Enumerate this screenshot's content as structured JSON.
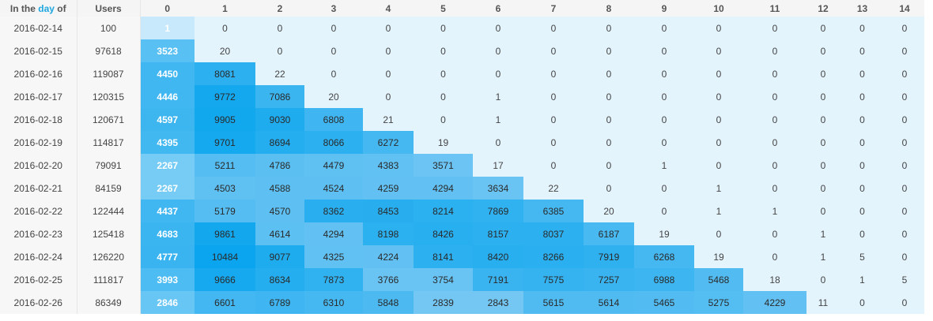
{
  "header": {
    "corner_prefix": "In the",
    "corner_accent": "day",
    "corner_suffix": "of",
    "users_label": "Users",
    "day_labels": [
      "0",
      "1",
      "2",
      "3",
      "4",
      "5",
      "6",
      "7",
      "8",
      "9",
      "10",
      "11",
      "12",
      "13",
      "14"
    ]
  },
  "colors": {
    "accent": "#1ca7e0",
    "cell_light": "#e4f4fd",
    "cell_dark": "#0aa5ee",
    "header_bg": "#f5f5f5"
  },
  "rows": [
    {
      "date": "2016-02-14",
      "users": "100",
      "values": [
        1,
        0,
        0,
        0,
        0,
        0,
        0,
        0,
        0,
        0,
        0,
        0,
        0,
        0,
        0
      ]
    },
    {
      "date": "2016-02-15",
      "users": "97618",
      "values": [
        3523,
        20,
        0,
        0,
        0,
        0,
        0,
        0,
        0,
        0,
        0,
        0,
        0,
        0,
        0
      ]
    },
    {
      "date": "2016-02-16",
      "users": "119087",
      "values": [
        4450,
        8081,
        22,
        0,
        0,
        0,
        0,
        0,
        0,
        0,
        0,
        0,
        0,
        0,
        0
      ]
    },
    {
      "date": "2016-02-17",
      "users": "120315",
      "values": [
        4446,
        9772,
        7086,
        20,
        0,
        0,
        1,
        0,
        0,
        0,
        0,
        0,
        0,
        0,
        0
      ]
    },
    {
      "date": "2016-02-18",
      "users": "120671",
      "values": [
        4597,
        9905,
        9030,
        6808,
        21,
        0,
        1,
        0,
        0,
        0,
        0,
        0,
        0,
        0,
        0
      ]
    },
    {
      "date": "2016-02-19",
      "users": "114817",
      "values": [
        4395,
        9701,
        8694,
        8066,
        6272,
        19,
        0,
        0,
        0,
        0,
        0,
        0,
        0,
        0,
        0
      ]
    },
    {
      "date": "2016-02-20",
      "users": "79091",
      "values": [
        2267,
        5211,
        4786,
        4479,
        4383,
        3571,
        17,
        0,
        0,
        1,
        0,
        0,
        0,
        0,
        0
      ]
    },
    {
      "date": "2016-02-21",
      "users": "84159",
      "values": [
        2267,
        4503,
        4588,
        4524,
        4259,
        4294,
        3634,
        22,
        0,
        0,
        1,
        0,
        0,
        0,
        0
      ]
    },
    {
      "date": "2016-02-22",
      "users": "122444",
      "values": [
        4437,
        5179,
        4570,
        8362,
        8453,
        8214,
        7869,
        6385,
        20,
        0,
        1,
        1,
        0,
        0,
        0
      ]
    },
    {
      "date": "2016-02-23",
      "users": "125418",
      "values": [
        4683,
        9861,
        4614,
        4294,
        8198,
        8426,
        8157,
        8037,
        6187,
        19,
        0,
        0,
        1,
        0,
        0
      ]
    },
    {
      "date": "2016-02-24",
      "users": "126220",
      "values": [
        4777,
        10484,
        9077,
        4325,
        4224,
        8141,
        8420,
        8266,
        7919,
        6268,
        19,
        0,
        1,
        5,
        0
      ]
    },
    {
      "date": "2016-02-25",
      "users": "111817",
      "values": [
        3993,
        9666,
        8634,
        7873,
        3766,
        3754,
        7191,
        7575,
        7257,
        6988,
        5468,
        18,
        0,
        1,
        5
      ]
    },
    {
      "date": "2016-02-26",
      "users": "86349",
      "values": [
        2846,
        6601,
        6789,
        6310,
        5848,
        2839,
        2843,
        5615,
        5614,
        5465,
        5275,
        4229,
        11,
        0,
        0
      ]
    }
  ]
}
